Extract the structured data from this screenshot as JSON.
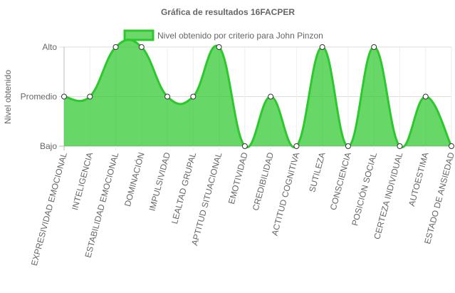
{
  "chart_data": {
    "type": "line",
    "title": "Gráfica de resultados 16FACPER",
    "ylabel": "Nivel obtenido",
    "categories": [
      "EXPRESIVIDAD EMOCIONAL",
      "INTELIGENCIA",
      "ESTABILIDAD EMOCIONAL",
      "DOMINACIÓN",
      "IMPULSIVIDAD",
      "LEALTAD GRUPAL",
      "APTITUD SITUACIONAL",
      "EMOTIVIDAD",
      "CREDIBILIDAD",
      "ACTITUD COGNITIVA",
      "SUTILEZA",
      "CONSCIENCIA",
      "POSICIÓN SOCIAL",
      "CERTEZA INDIVIDUAL",
      "AUTOESTIMA",
      "ESTADO DE ANSIEDAD"
    ],
    "series": [
      {
        "name": "Nivel obtenido por criterio para John Pinzon",
        "color": "#2dc82d",
        "values": [
          2,
          2,
          3,
          3,
          2,
          2,
          3,
          1,
          2,
          1,
          3,
          1,
          3,
          1,
          2,
          1
        ]
      }
    ],
    "ylim": [
      1,
      3
    ],
    "yticks": [
      {
        "value": 1,
        "label": "Bajo"
      },
      {
        "value": 2,
        "label": "Promedio"
      },
      {
        "value": 3,
        "label": "Alto"
      }
    ],
    "grid": true,
    "fill": true
  }
}
